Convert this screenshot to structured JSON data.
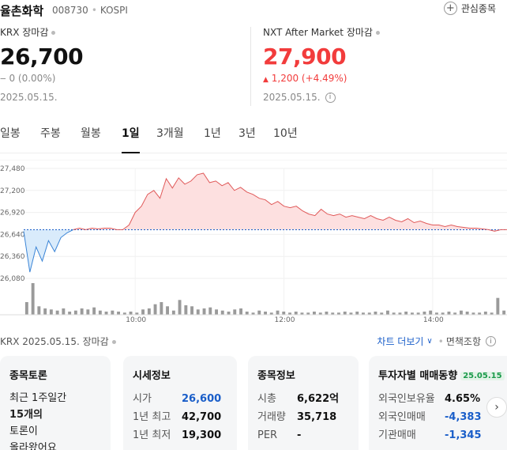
{
  "header": {
    "stock_name": "율촌화학",
    "stock_code": "008730",
    "exchange": "KOSPI",
    "favorite_label": "관심종목"
  },
  "krx": {
    "label": "KRX 장마감",
    "price": "26,700",
    "change": "0 (0.00%)",
    "date": "2025.05.15."
  },
  "nxt": {
    "label": "NXT After Market 장마감",
    "price": "27,900",
    "change": "1,200 (+4.49%)",
    "date": "2025.05.15."
  },
  "tabs": [
    "일봉",
    "주봉",
    "월봉",
    "1일",
    "3개월",
    "1년",
    "3년",
    "10년"
  ],
  "active_tab": "1일",
  "chart_data": {
    "type": "line",
    "x_tick_labels": [
      "10:00",
      "12:00",
      "14:00"
    ],
    "y_tick_labels": [
      "27,480",
      "27,200",
      "26,920",
      "26,640",
      "26,360",
      "26,080"
    ],
    "ylim": [
      26080,
      27480
    ],
    "xlim": [
      0,
      390
    ],
    "baseline": 26700,
    "price_x": [
      0,
      5,
      10,
      15,
      20,
      25,
      30,
      35,
      40,
      45,
      50,
      55,
      60,
      65,
      70,
      75,
      80,
      85,
      90,
      95,
      100,
      105,
      110,
      115,
      120,
      125,
      130,
      135,
      140,
      145,
      150,
      155,
      160,
      165,
      170,
      175,
      180,
      185,
      190,
      195,
      200,
      205,
      210,
      215,
      220,
      225,
      230,
      235,
      240,
      245,
      250,
      255,
      260,
      265,
      270,
      275,
      280,
      285,
      290,
      295,
      300,
      305,
      310,
      315,
      320,
      325,
      330,
      335,
      340,
      345,
      350,
      355,
      360,
      365,
      370,
      375,
      380,
      385,
      390
    ],
    "price_y": [
      26680,
      26160,
      26480,
      26300,
      26560,
      26420,
      26600,
      26660,
      26700,
      26720,
      26700,
      26720,
      26710,
      26720,
      26720,
      26700,
      26700,
      26760,
      26920,
      27000,
      27150,
      27200,
      27100,
      27350,
      27230,
      27360,
      27280,
      27320,
      27400,
      27420,
      27300,
      27320,
      27260,
      27300,
      27200,
      27240,
      27180,
      27150,
      27100,
      27080,
      27020,
      27060,
      27000,
      26980,
      27000,
      26940,
      26900,
      26880,
      26960,
      26900,
      26880,
      26900,
      26860,
      26880,
      26860,
      26840,
      26880,
      26840,
      26820,
      26860,
      26820,
      26800,
      26840,
      26790,
      26810,
      26780,
      26760,
      26760,
      26740,
      26760,
      26740,
      26730,
      26720,
      26720,
      26710,
      26700,
      26680,
      26700,
      26700
    ],
    "volume": [
      12,
      30,
      8,
      6,
      5,
      4,
      6,
      3,
      4,
      6,
      5,
      7,
      4,
      3,
      4,
      3,
      2,
      3,
      2,
      5,
      6,
      10,
      12,
      8,
      4,
      14,
      9,
      8,
      5,
      6,
      7,
      5,
      4,
      3,
      5,
      6,
      3,
      2,
      4,
      3,
      2,
      4,
      3,
      2,
      3,
      2,
      2,
      3,
      2,
      3,
      2,
      2,
      3,
      2,
      3,
      2,
      2,
      3,
      2,
      4,
      2,
      2,
      3,
      2,
      2,
      3,
      4,
      2,
      2,
      3,
      2,
      4,
      3,
      2,
      2,
      3,
      2,
      16,
      4
    ]
  },
  "bottom_bar": {
    "left_text": "KRX  2025.05.15. 장마감",
    "more_chart": "차트 더보기",
    "disclaimer": "면책조항"
  },
  "cards": {
    "discussion": {
      "title": "종목토론",
      "lines": [
        "최근 1주일간",
        "15개의",
        "토론이",
        "올라왔어요"
      ]
    },
    "quotes": {
      "title": "시세정보",
      "rows": [
        {
          "k": "시가",
          "v": "26,600"
        },
        {
          "k": "1년 최고",
          "v": "42,700"
        },
        {
          "k": "1년 최저",
          "v": "19,300"
        }
      ]
    },
    "info": {
      "title": "종목정보",
      "rows": [
        {
          "k": "시총",
          "v": "6,622억"
        },
        {
          "k": "거래량",
          "v": "35,718"
        },
        {
          "k": "PER",
          "v": "-"
        }
      ]
    },
    "investor": {
      "title": "투자자별 매매동향",
      "badge": "25.05.15",
      "rows": [
        {
          "k": "외국인보유율",
          "v": "4.65%"
        },
        {
          "k": "외국인매매",
          "v": "-4,383"
        },
        {
          "k": "기관매매",
          "v": "-1,345"
        }
      ]
    }
  },
  "colors": {
    "up": "#f23c3c",
    "down": "#1a5ec9",
    "up_fill": "#fde0e0",
    "down_fill": "#d9ebfb",
    "volume": "#9a9a9a"
  }
}
